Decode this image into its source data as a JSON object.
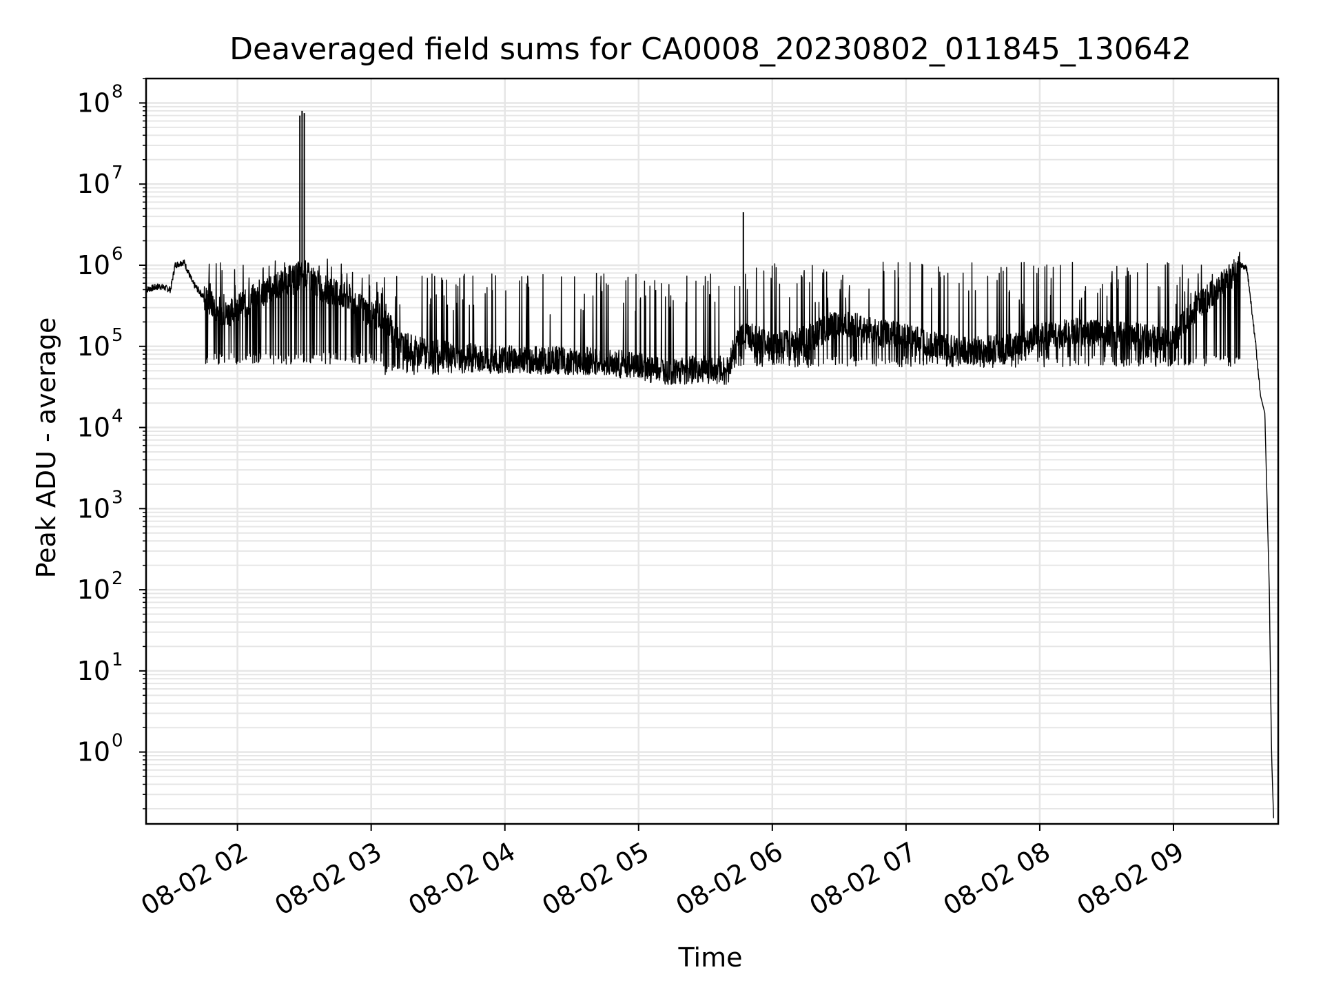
{
  "chart_data": {
    "type": "line",
    "title": "Deaveraged field sums for CA0008_20230802_011845_130642",
    "xlabel": "Time",
    "ylabel": "Peak ADU - average",
    "yscale": "log",
    "ylim": [
      0.13,
      200000000
    ],
    "xlim": [
      "2023-08-02 01:19",
      "2023-08-02 09:47"
    ],
    "grid": true,
    "x_ticks": [
      {
        "t": "2023-08-02 02:00",
        "label": "08-02 02"
      },
      {
        "t": "2023-08-02 03:00",
        "label": "08-02 03"
      },
      {
        "t": "2023-08-02 04:00",
        "label": "08-02 04"
      },
      {
        "t": "2023-08-02 05:00",
        "label": "08-02 05"
      },
      {
        "t": "2023-08-02 06:00",
        "label": "08-02 06"
      },
      {
        "t": "2023-08-02 07:00",
        "label": "08-02 07"
      },
      {
        "t": "2023-08-02 08:00",
        "label": "08-02 08"
      },
      {
        "t": "2023-08-02 09:00",
        "label": "08-02 09"
      }
    ],
    "y_ticks": [
      {
        "value": 1,
        "base": "10",
        "exp": "0"
      },
      {
        "value": 10,
        "base": "10",
        "exp": "1"
      },
      {
        "value": 100,
        "base": "10",
        "exp": "2"
      },
      {
        "value": 1000,
        "base": "10",
        "exp": "3"
      },
      {
        "value": 10000,
        "base": "10",
        "exp": "4"
      },
      {
        "value": 100000,
        "base": "10",
        "exp": "5"
      },
      {
        "value": 1000000,
        "base": "10",
        "exp": "6"
      },
      {
        "value": 10000000,
        "base": "10",
        "exp": "7"
      },
      {
        "value": 100000000,
        "base": "10",
        "exp": "8"
      }
    ],
    "series": [
      {
        "color": "#000000",
        "points": [
          [
            "2023-08-02 01:19",
            500000
          ],
          [
            "2023-08-02 01:25",
            550000
          ],
          [
            "2023-08-02 01:30",
            500000
          ],
          [
            "2023-08-02 01:32",
            1000000
          ],
          [
            "2023-08-02 01:36",
            1100000
          ],
          [
            "2023-08-02 01:40",
            600000
          ],
          [
            "2023-08-02 01:45",
            400000
          ],
          [
            "2023-08-02 01:50",
            300000
          ],
          [
            "2023-08-02 01:55",
            250000
          ],
          [
            "2023-08-02 02:00",
            300000
          ],
          [
            "2023-08-02 02:05",
            350000
          ],
          [
            "2023-08-02 02:10",
            450000
          ],
          [
            "2023-08-02 02:15",
            500000
          ],
          [
            "2023-08-02 02:20",
            600000
          ],
          [
            "2023-08-02 02:25",
            700000
          ],
          [
            "2023-08-02 02:30",
            800000
          ],
          [
            "2023-08-02 02:35",
            600000
          ],
          [
            "2023-08-02 02:40",
            500000
          ],
          [
            "2023-08-02 02:45",
            450000
          ],
          [
            "2023-08-02 02:50",
            400000
          ],
          [
            "2023-08-02 02:55",
            300000
          ],
          [
            "2023-08-02 03:00",
            250000
          ],
          [
            "2023-08-02 03:05",
            230000
          ],
          [
            "2023-08-02 03:10",
            150000
          ],
          [
            "2023-08-02 03:15",
            100000
          ],
          [
            "2023-08-02 03:20",
            90000
          ],
          [
            "2023-08-02 03:30",
            80000
          ],
          [
            "2023-08-02 03:40",
            75000
          ],
          [
            "2023-08-02 03:50",
            72000
          ],
          [
            "2023-08-02 04:00",
            70000
          ],
          [
            "2023-08-02 04:15",
            68000
          ],
          [
            "2023-08-02 04:30",
            66000
          ],
          [
            "2023-08-02 04:45",
            65000
          ],
          [
            "2023-08-02 05:00",
            55000
          ],
          [
            "2023-08-02 05:15",
            50000
          ],
          [
            "2023-08-02 05:30",
            52000
          ],
          [
            "2023-08-02 05:40",
            50000
          ],
          [
            "2023-08-02 05:45",
            150000
          ],
          [
            "2023-08-02 06:00",
            100000
          ],
          [
            "2023-08-02 06:15",
            120000
          ],
          [
            "2023-08-02 06:30",
            200000
          ],
          [
            "2023-08-02 06:45",
            150000
          ],
          [
            "2023-08-02 07:00",
            130000
          ],
          [
            "2023-08-02 07:15",
            100000
          ],
          [
            "2023-08-02 07:30",
            90000
          ],
          [
            "2023-08-02 07:45",
            95000
          ],
          [
            "2023-08-02 08:00",
            130000
          ],
          [
            "2023-08-02 08:15",
            150000
          ],
          [
            "2023-08-02 08:30",
            140000
          ],
          [
            "2023-08-02 08:45",
            130000
          ],
          [
            "2023-08-02 09:00",
            120000
          ],
          [
            "2023-08-02 09:10",
            300000
          ],
          [
            "2023-08-02 09:20",
            500000
          ],
          [
            "2023-08-02 09:25",
            700000
          ],
          [
            "2023-08-02 09:30",
            1000000
          ],
          [
            "2023-08-02 09:33",
            900000
          ],
          [
            "2023-08-02 09:37",
            100000
          ],
          [
            "2023-08-02 09:39",
            25000
          ],
          [
            "2023-08-02 09:41",
            15000
          ],
          [
            "2023-08-02 09:43",
            100
          ],
          [
            "2023-08-02 09:44",
            1
          ],
          [
            "2023-08-02 09:45",
            0.13
          ]
        ]
      }
    ],
    "spikes": [
      {
        "t": "2023-08-02 02:28",
        "value": 70000000
      },
      {
        "t": "2023-08-02 02:29",
        "value": 80000000
      },
      {
        "t": "2023-08-02 02:30",
        "value": 75000000
      },
      {
        "t": "2023-08-02 05:47",
        "value": 4500000
      }
    ],
    "noise_band": [
      {
        "from": "2023-08-02 01:45",
        "to": "2023-08-02 03:05",
        "low": 60000,
        "high": 1200000
      },
      {
        "from": "2023-08-02 03:05",
        "to": "2023-08-02 05:45",
        "low": 45000,
        "high": 800000
      },
      {
        "from": "2023-08-02 05:45",
        "to": "2023-08-02 09:30",
        "low": 55000,
        "high": 1100000
      }
    ]
  }
}
